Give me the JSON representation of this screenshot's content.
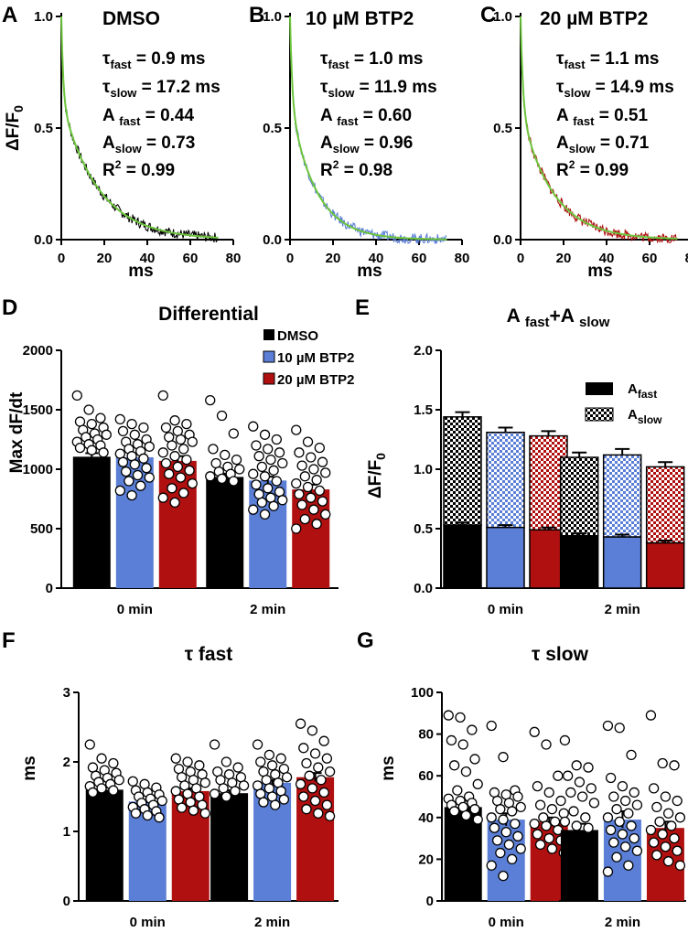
{
  "colors": {
    "dmso": "#000000",
    "btp10": "#5b7fd6",
    "btp20": "#b01010",
    "fit": "#6cc43c",
    "dot_fill": "#ffffff"
  },
  "decay_panels": [
    {
      "label": "A",
      "title": "DMSO",
      "trace_color": "#000000",
      "params": {
        "tau_fast": 0.9,
        "tau_slow": 17.2,
        "a_fast": 0.44,
        "a_slow": 0.73
      },
      "lines": {
        "tau_fast": "= 0.9 ms",
        "tau_slow": "= 17.2 ms",
        "a_fast": "= 0.44",
        "a_slow": "= 0.73",
        "r2": "= 0.99"
      }
    },
    {
      "label": "B",
      "title": "10 µM BTP2",
      "trace_color": "#5b7fd6",
      "params": {
        "tau_fast": 1.0,
        "tau_slow": 11.9,
        "a_fast": 0.6,
        "a_slow": 0.96
      },
      "lines": {
        "tau_fast": "= 1.0 ms",
        "tau_slow": "= 11.9 ms",
        "a_fast": "= 0.60",
        "a_slow": "= 0.96",
        "r2": "= 0.98"
      }
    },
    {
      "label": "C",
      "title": "20 µM BTP2",
      "trace_color": "#b01010",
      "params": {
        "tau_fast": 1.1,
        "tau_slow": 14.9,
        "a_fast": 0.51,
        "a_slow": 0.71
      },
      "lines": {
        "tau_fast": "= 1.1 ms",
        "tau_slow": "= 14.9 ms",
        "a_fast": "= 0.51",
        "a_slow": "= 0.71",
        "r2": "= 0.99"
      }
    }
  ],
  "decay_common": {
    "ylabel": "ΔF/F0",
    "xlabel": "ms",
    "xlim": [
      0,
      80
    ],
    "ylim": [
      0,
      1.0
    ],
    "xticks": [
      0,
      20,
      40,
      60,
      80
    ],
    "yticks": [
      0.0,
      0.5,
      1.0
    ],
    "xticks_labels": [
      "0",
      "20",
      "40",
      "60",
      "80"
    ],
    "yticks_labels": [
      "0.0",
      "0.5",
      "1.0"
    ]
  },
  "legend": {
    "dmso": "DMSO",
    "btp10": "10 µM BTP2",
    "btp20": "20 µM BTP2",
    "a_fast": "A",
    "a_fast_sub": "fast",
    "a_slow": "A",
    "a_slow_sub": "slow"
  },
  "group_labels": [
    "0 min",
    "2 min"
  ],
  "chart_data": [
    {
      "type": "line",
      "panel": "A",
      "title": "DMSO",
      "xlabel": "ms",
      "ylabel": "ΔF/F0",
      "xlim": [
        0,
        80
      ],
      "ylim": [
        0,
        1.0
      ],
      "series": [
        {
          "name": "trace",
          "x_range": [
            0,
            73
          ]
        },
        {
          "name": "biexponential fit",
          "tau_fast": 0.9,
          "tau_slow": 17.2,
          "a_fast": 0.44,
          "a_slow": 0.73,
          "r2": 0.99
        }
      ]
    },
    {
      "type": "line",
      "panel": "B",
      "title": "10 µM BTP2",
      "xlabel": "ms",
      "ylabel": "ΔF/F0",
      "xlim": [
        0,
        80
      ],
      "ylim": [
        0,
        1.0
      ],
      "series": [
        {
          "name": "trace",
          "x_range": [
            0,
            73
          ]
        },
        {
          "name": "biexponential fit",
          "tau_fast": 1.0,
          "tau_slow": 11.9,
          "a_fast": 0.6,
          "a_slow": 0.96,
          "r2": 0.98
        }
      ]
    },
    {
      "type": "line",
      "panel": "C",
      "title": "20 µM BTP2",
      "xlabel": "ms",
      "ylabel": "ΔF/F0",
      "xlim": [
        0,
        80
      ],
      "ylim": [
        0,
        1.0
      ],
      "series": [
        {
          "name": "trace",
          "x_range": [
            0,
            73
          ]
        },
        {
          "name": "biexponential fit",
          "tau_fast": 1.1,
          "tau_slow": 14.9,
          "a_fast": 0.51,
          "a_slow": 0.71,
          "r2": 0.99
        }
      ]
    },
    {
      "type": "bar",
      "panel": "D",
      "title": "Differential",
      "ylabel": "Max dF/dt",
      "categories": [
        "0 min",
        "2 min"
      ],
      "ylim": [
        0,
        2000
      ],
      "yticks": [
        0,
        500,
        1000,
        1500,
        2000
      ],
      "series": [
        {
          "name": "DMSO",
          "values": [
            1105,
            935
          ],
          "sem": [
            30,
            28
          ],
          "points": [
            [
              1620,
              1500,
              1430,
              1400,
              1380,
              1350,
              1330,
              1300,
              1290,
              1270,
              1250,
              1230,
              1210,
              1200,
              1180,
              1160,
              1140
            ],
            [
              1580,
              1450,
              1300,
              1170,
              1120,
              1080,
              1050,
              1020,
              1000,
              980,
              960,
              940,
              920,
              900
            ]
          ]
        },
        {
          "name": "10 µM BTP2",
          "values": [
            1100,
            905
          ],
          "sem": [
            30,
            32
          ],
          "points": [
            [
              1420,
              1380,
              1350,
              1320,
              1290,
              1250,
              1230,
              1210,
              1190,
              1170,
              1150,
              1130,
              1110,
              1090,
              1060,
              1040,
              1010,
              980,
              950,
              930,
              900,
              860,
              820,
              780
            ],
            [
              1360,
              1290,
              1250,
              1200,
              1170,
              1140,
              1110,
              1080,
              1050,
              1020,
              990,
              960,
              940,
              900,
              870,
              840,
              810,
              790,
              760,
              740,
              720,
              690,
              660,
              620
            ]
          ]
        },
        {
          "name": "20 µM BTP2",
          "values": [
            1070,
            830
          ],
          "sem": [
            40,
            40
          ],
          "points": [
            [
              1620,
              1410,
              1380,
              1350,
              1320,
              1290,
              1270,
              1250,
              1230,
              1200,
              1170,
              1140,
              1110,
              1080,
              1050,
              1020,
              990,
              960,
              930,
              880,
              840,
              800,
              760,
              720
            ],
            [
              1330,
              1230,
              1180,
              1140,
              1100,
              1060,
              1030,
              1000,
              970,
              940,
              910,
              880,
              850,
              820,
              790,
              760,
              730,
              700,
              660,
              620,
              580,
              540,
              500
            ]
          ]
        }
      ]
    },
    {
      "type": "bar",
      "panel": "E",
      "title": "A fast+A slow",
      "ylabel": "ΔF/F0",
      "categories": [
        "0 min",
        "2 min"
      ],
      "ylim": [
        0,
        2.0
      ],
      "yticks": [
        0.0,
        0.5,
        1.0,
        1.5,
        2.0
      ],
      "stacked": true,
      "series": [
        {
          "group": "DMSO",
          "a_fast": [
            0.53,
            0.44
          ],
          "total": [
            1.44,
            1.1
          ],
          "err_fast": [
            0.02,
            0.02
          ],
          "err_total": [
            0.04,
            0.04
          ]
        },
        {
          "group": "10 µM BTP2",
          "a_fast": [
            0.51,
            0.43
          ],
          "total": [
            1.31,
            1.12
          ],
          "err_fast": [
            0.02,
            0.02
          ],
          "err_total": [
            0.04,
            0.05
          ]
        },
        {
          "group": "20 µM BTP2",
          "a_fast": [
            0.49,
            0.38
          ],
          "total": [
            1.28,
            1.02
          ],
          "err_fast": [
            0.02,
            0.02
          ],
          "err_total": [
            0.04,
            0.04
          ]
        }
      ]
    },
    {
      "type": "bar",
      "panel": "F",
      "title": "τ fast",
      "ylabel": "ms",
      "categories": [
        "0 min",
        "2 min"
      ],
      "ylim": [
        0,
        3
      ],
      "yticks": [
        0,
        1,
        2,
        3
      ],
      "series": [
        {
          "name": "DMSO",
          "values": [
            1.6,
            1.55
          ],
          "sem": [
            0.03,
            0.04
          ],
          "points": [
            [
              2.25,
              2.05,
              1.98,
              1.92,
              1.88,
              1.84,
              1.8,
              1.77,
              1.74,
              1.71,
              1.68,
              1.65,
              1.62,
              1.59,
              1.56
            ],
            [
              2.25,
              2.0,
              1.92,
              1.86,
              1.82,
              1.78,
              1.74,
              1.7,
              1.66,
              1.62,
              1.58,
              1.54,
              1.5
            ]
          ]
        },
        {
          "name": "10 µM BTP2",
          "values": [
            1.43,
            1.7
          ],
          "sem": [
            0.02,
            0.04
          ],
          "points": [
            [
              1.72,
              1.68,
              1.63,
              1.59,
              1.56,
              1.53,
              1.5,
              1.47,
              1.44,
              1.41,
              1.38,
              1.35,
              1.32,
              1.29,
              1.26,
              1.23,
              1.2
            ],
            [
              2.25,
              2.1,
              2.05,
              2.0,
              1.95,
              1.9,
              1.86,
              1.82,
              1.78,
              1.74,
              1.7,
              1.66,
              1.62,
              1.58,
              1.54,
              1.5,
              1.46,
              1.42,
              1.38
            ]
          ]
        },
        {
          "name": "20 µM BTP2",
          "values": [
            1.58,
            1.78
          ],
          "sem": [
            0.04,
            0.06
          ],
          "points": [
            [
              2.05,
              2.0,
              1.95,
              1.9,
              1.86,
              1.82,
              1.78,
              1.74,
              1.7,
              1.66,
              1.62,
              1.58,
              1.54,
              1.5,
              1.46,
              1.42,
              1.38,
              1.34,
              1.3,
              1.26
            ],
            [
              2.55,
              2.45,
              2.3,
              2.2,
              2.12,
              2.05,
              1.98,
              1.92,
              1.86,
              1.8,
              1.74,
              1.68,
              1.62,
              1.56,
              1.5,
              1.44,
              1.38,
              1.32,
              1.26,
              1.22
            ]
          ]
        }
      ]
    },
    {
      "type": "bar",
      "panel": "G",
      "title": "τ slow",
      "ylabel": "ms",
      "categories": [
        "0 min",
        "2 min"
      ],
      "ylim": [
        0,
        100
      ],
      "yticks": [
        0,
        20,
        40,
        60,
        80,
        100
      ],
      "series": [
        {
          "name": "DMSO",
          "values": [
            45,
            34
          ],
          "sem": [
            3,
            3
          ],
          "points": [
            [
              89,
              88,
              82,
              77,
              75,
              68,
              65,
              62,
              56,
              53,
              50,
              49,
              48,
              47,
              46,
              45,
              44,
              43,
              41,
              39
            ],
            [
              77,
              65,
              64,
              60,
              57,
              54,
              52,
              50,
              47,
              43,
              40,
              38,
              36,
              35
            ]
          ]
        },
        {
          "name": "10 µM BTP2",
          "values": [
            39,
            39
          ],
          "sem": [
            3,
            4
          ],
          "points": [
            [
              84,
              69,
              53,
              52,
              51,
              50,
              48,
              47,
              45,
              44,
              43,
              40,
              39,
              37,
              35,
              33,
              31,
              29,
              27,
              25,
              23,
              20,
              17,
              12
            ],
            [
              84,
              83,
              70,
              59,
              55,
              52,
              50,
              48,
              46,
              44,
              42,
              40,
              38,
              36,
              34,
              32,
              30,
              28,
              26,
              24,
              21,
              17,
              14
            ]
          ]
        },
        {
          "name": "20 µM BTP2",
          "values": [
            38,
            35
          ],
          "sem": [
            2,
            3
          ],
          "points": [
            [
              81,
              75,
              60,
              55,
              52,
              48,
              46,
              44,
              42,
              40,
              38,
              37,
              36,
              34,
              32,
              30,
              29,
              27,
              25,
              23
            ],
            [
              89,
              66,
              65,
              54,
              50,
              48,
              45,
              42,
              40,
              38,
              36,
              34,
              32,
              30,
              28,
              26,
              24,
              22,
              19,
              17
            ]
          ]
        }
      ]
    }
  ]
}
